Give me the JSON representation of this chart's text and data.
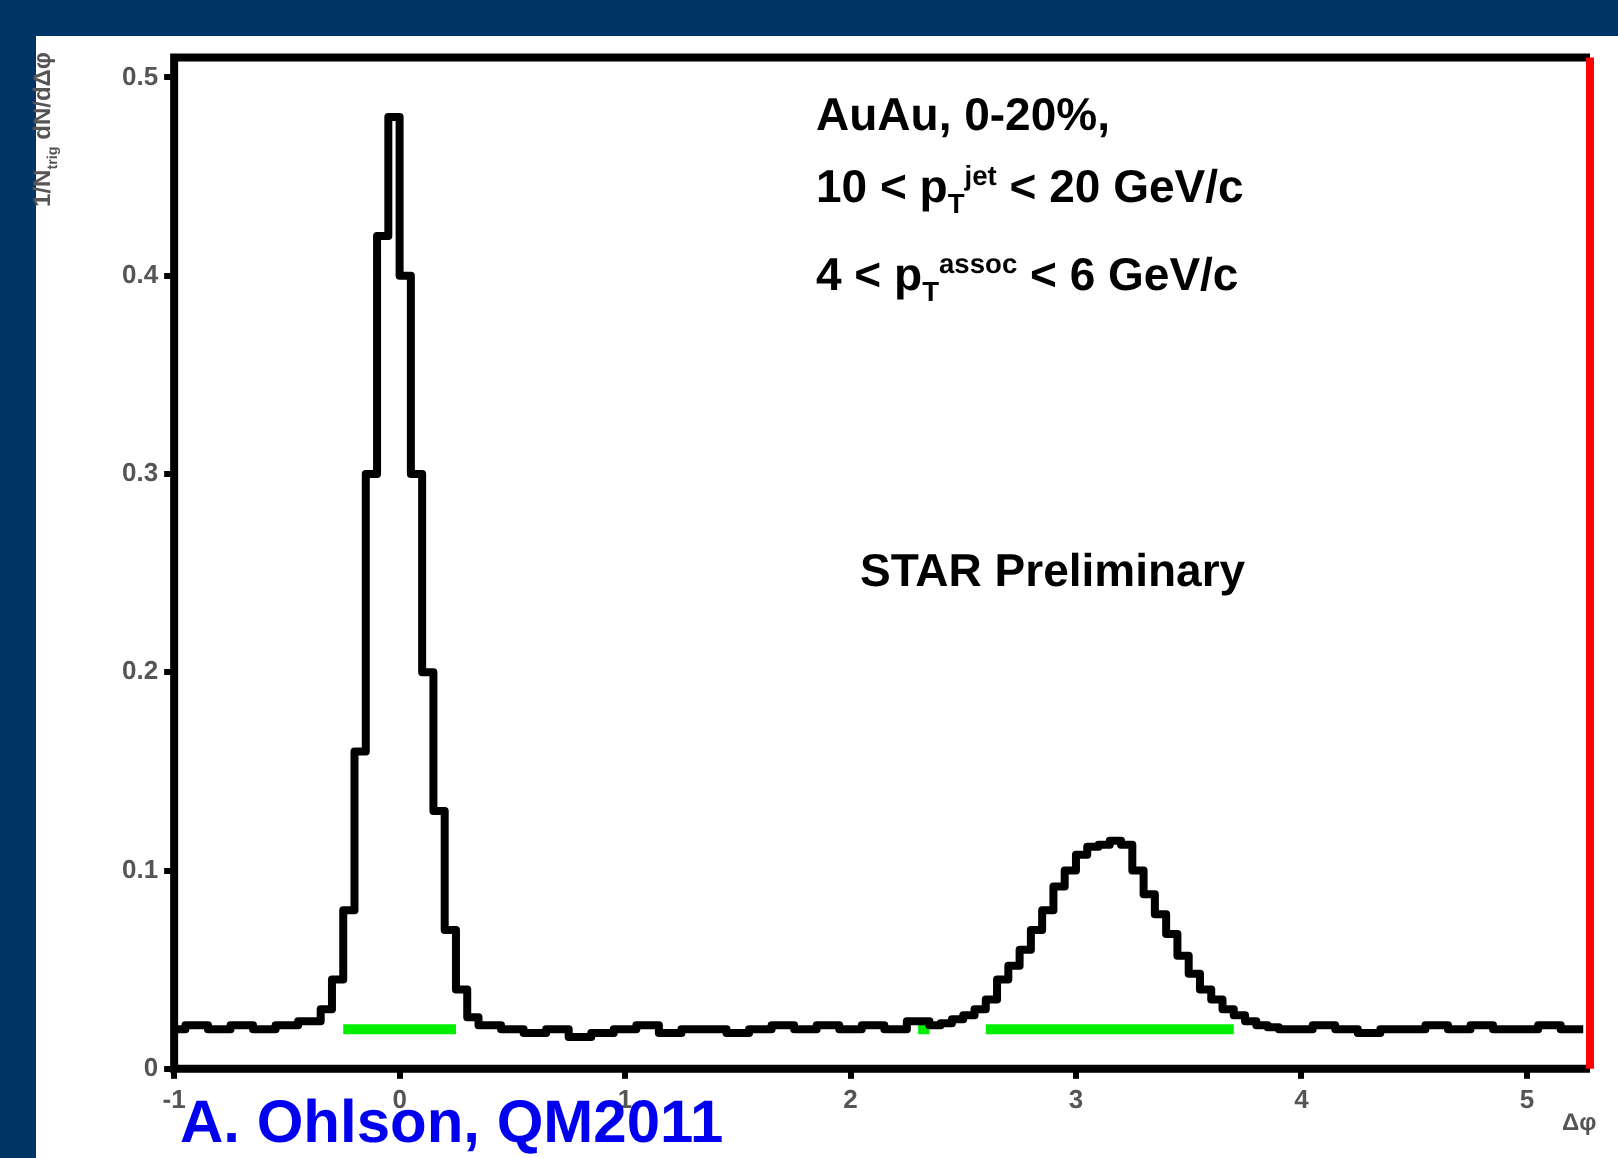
{
  "chart_data": {
    "type": "step",
    "xlabel": "Δφ",
    "ylabel": "1/N$_{trig}$ dN/dΔφ",
    "x": [
      -1.0,
      -0.95,
      -0.9,
      -0.85,
      -0.8,
      -0.75,
      -0.7,
      -0.65,
      -0.6,
      -0.55,
      -0.5,
      -0.45,
      -0.4,
      -0.35,
      -0.3,
      -0.25,
      -0.2,
      -0.15,
      -0.1,
      -0.05,
      0,
      0.05,
      0.1,
      0.15,
      0.2,
      0.25,
      0.3,
      0.35,
      0.4,
      0.45,
      0.5,
      0.55,
      0.6,
      0.65,
      0.7,
      0.75,
      0.8,
      0.85,
      0.9,
      0.95,
      1.0,
      1.05,
      1.1,
      1.15,
      1.2,
      1.25,
      1.3,
      1.35,
      1.4,
      1.45,
      1.5,
      1.55,
      1.6,
      1.65,
      1.7,
      1.75,
      1.8,
      1.85,
      1.9,
      1.95,
      2.0,
      2.05,
      2.1,
      2.15,
      2.2,
      2.25,
      2.3,
      2.35,
      2.4,
      2.45,
      2.5,
      2.55,
      2.6,
      2.65,
      2.7,
      2.75,
      2.8,
      2.85,
      2.9,
      2.95,
      3.0,
      3.05,
      3.1,
      3.15,
      3.2,
      3.25,
      3.3,
      3.35,
      3.4,
      3.45,
      3.5,
      3.55,
      3.6,
      3.65,
      3.7,
      3.75,
      3.8,
      3.85,
      3.9,
      3.95,
      4.0,
      4.05,
      4.1,
      4.15,
      4.2,
      4.25,
      4.3,
      4.35,
      4.4,
      4.45,
      4.5,
      4.55,
      4.6,
      4.65,
      4.7,
      4.75,
      4.8,
      4.85,
      4.9,
      4.95,
      5.0,
      5.05,
      5.1,
      5.15,
      5.2,
      5.25
    ],
    "series": [
      {
        "color": "#000000",
        "values": [
          0.02,
          0.02,
          0.022,
          0.022,
          0.02,
          0.02,
          0.022,
          0.022,
          0.02,
          0.02,
          0.022,
          0.022,
          0.024,
          0.024,
          0.03,
          0.045,
          0.08,
          0.16,
          0.3,
          0.42,
          0.48,
          0.4,
          0.3,
          0.2,
          0.13,
          0.07,
          0.04,
          0.026,
          0.022,
          0.022,
          0.02,
          0.02,
          0.018,
          0.018,
          0.02,
          0.02,
          0.016,
          0.016,
          0.018,
          0.018,
          0.02,
          0.02,
          0.022,
          0.022,
          0.018,
          0.018,
          0.02,
          0.02,
          0.02,
          0.02,
          0.018,
          0.018,
          0.02,
          0.02,
          0.022,
          0.022,
          0.02,
          0.02,
          0.022,
          0.022,
          0.02,
          0.02,
          0.022,
          0.022,
          0.02,
          0.02,
          0.024,
          0.024,
          0.022,
          0.023,
          0.025,
          0.027,
          0.03,
          0.035,
          0.045,
          0.052,
          0.06,
          0.07,
          0.08,
          0.092,
          0.1,
          0.108,
          0.112,
          0.113,
          0.115,
          0.113,
          0.1,
          0.088,
          0.078,
          0.068,
          0.057,
          0.048,
          0.04,
          0.035,
          0.03,
          0.027,
          0.024,
          0.022,
          0.021,
          0.02,
          0.02,
          0.02,
          0.022,
          0.022,
          0.02,
          0.02,
          0.018,
          0.018,
          0.02,
          0.02,
          0.02,
          0.02,
          0.022,
          0.022,
          0.02,
          0.02,
          0.022,
          0.022,
          0.02,
          0.02,
          0.02,
          0.02,
          0.022,
          0.022,
          0.02,
          0.02
        ]
      },
      {
        "type": "line",
        "color": "#00ee00",
        "x": [
          -0.25,
          0.25,
          1.0,
          2.3,
          2.35,
          2.5,
          2.6,
          3.7
        ],
        "values": [
          0.02,
          0.02,
          null,
          0.02,
          0.02,
          null,
          0.02,
          0.02
        ]
      }
    ],
    "xlim": [
      -1,
      5.28
    ],
    "xticks": [
      -1,
      0,
      1,
      2,
      3,
      4,
      5
    ],
    "ylim": [
      0,
      0.51
    ],
    "yticks": [
      0,
      0.1,
      0.2,
      0.3,
      0.4,
      0.5
    ],
    "grid": false,
    "annotations": [
      "AuAu, 0-20%,",
      "10 < p$_{T}$$^{jet}$ < 20 GeV/c",
      "4 < p$_{T}$$^{assoc}$ < 6 GeV/c",
      "STAR Preliminary",
      "A. Ohlson, QM2011"
    ]
  }
}
